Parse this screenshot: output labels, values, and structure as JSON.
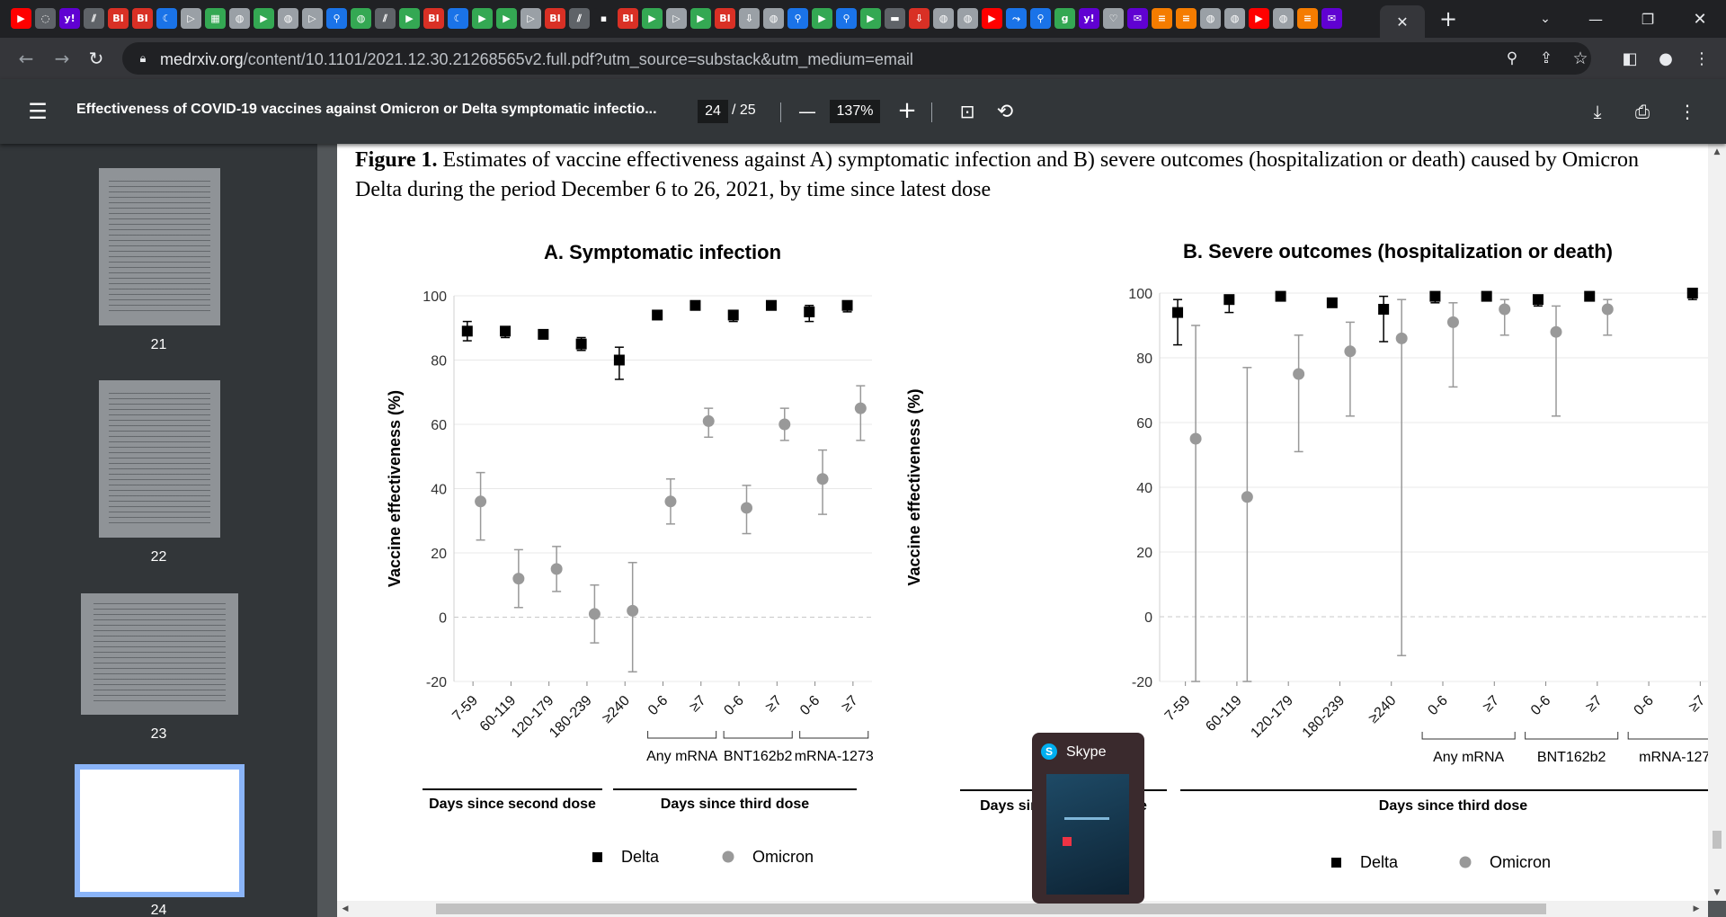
{
  "browser": {
    "url_host": "medrxiv.org",
    "url_path": "/content/10.1101/2021.12.30.21268565v2.full.pdf?utm_source=substack&utm_medium=email",
    "tab_icons": [
      {
        "name": "youtube-icon",
        "glyph": "▶",
        "color": "#ff0000"
      },
      {
        "name": "tab-icon-generic",
        "glyph": "◌",
        "color": "#5f6368"
      },
      {
        "name": "yahoo-icon",
        "glyph": "y!",
        "color": "#6001d2"
      },
      {
        "name": "tab-icon-generic",
        "glyph": "⫽",
        "color": "#5f6368"
      },
      {
        "name": "business-insider-icon",
        "glyph": "BI",
        "color": "#d93025"
      },
      {
        "name": "business-insider-icon",
        "glyph": "BI",
        "color": "#d93025"
      },
      {
        "name": "tab-icon-generic",
        "glyph": "☾",
        "color": "#1a73e8"
      },
      {
        "name": "tab-icon-generic",
        "glyph": "▷",
        "color": "#9aa0a6"
      },
      {
        "name": "tab-icon-generic",
        "glyph": "▦",
        "color": "#34a853"
      },
      {
        "name": "globe-icon",
        "glyph": "◍",
        "color": "#9aa0a6"
      },
      {
        "name": "play-icon",
        "glyph": "▶",
        "color": "#34a853"
      },
      {
        "name": "globe-icon",
        "glyph": "◍",
        "color": "#9aa0a6"
      },
      {
        "name": "tab-icon-generic",
        "glyph": "▷",
        "color": "#9aa0a6"
      },
      {
        "name": "search-icon",
        "glyph": "⚲",
        "color": "#1a73e8"
      },
      {
        "name": "globe-icon",
        "glyph": "◍",
        "color": "#34a853"
      },
      {
        "name": "tab-icon-generic",
        "glyph": "⫽",
        "color": "#5f6368"
      },
      {
        "name": "play-icon",
        "glyph": "▶",
        "color": "#34a853"
      },
      {
        "name": "business-insider-icon",
        "glyph": "BI",
        "color": "#d93025"
      },
      {
        "name": "tab-icon-generic",
        "glyph": "☾",
        "color": "#1a73e8"
      },
      {
        "name": "play-icon",
        "glyph": "▶",
        "color": "#34a853"
      },
      {
        "name": "play-icon",
        "glyph": "▶",
        "color": "#34a853"
      },
      {
        "name": "tab-icon-generic",
        "glyph": "▷",
        "color": "#9aa0a6"
      },
      {
        "name": "business-insider-icon",
        "glyph": "BI",
        "color": "#d93025"
      },
      {
        "name": "tab-icon-generic",
        "glyph": "⫽",
        "color": "#5f6368"
      },
      {
        "name": "tab-icon-generic",
        "glyph": "▪",
        "color": "#202124"
      },
      {
        "name": "business-insider-icon",
        "glyph": "BI",
        "color": "#d93025"
      },
      {
        "name": "play-icon",
        "glyph": "▶",
        "color": "#34a853"
      },
      {
        "name": "tab-icon-generic",
        "glyph": "▷",
        "color": "#9aa0a6"
      },
      {
        "name": "play-icon",
        "glyph": "▶",
        "color": "#34a853"
      },
      {
        "name": "business-insider-icon",
        "glyph": "BI",
        "color": "#d93025"
      },
      {
        "name": "tab-icon-generic",
        "glyph": "⇩",
        "color": "#9aa0a6"
      },
      {
        "name": "globe-icon",
        "glyph": "◍",
        "color": "#9aa0a6"
      },
      {
        "name": "search-icon",
        "glyph": "⚲",
        "color": "#1a73e8"
      },
      {
        "name": "play-icon",
        "glyph": "▶",
        "color": "#34a853"
      },
      {
        "name": "search-icon",
        "glyph": "⚲",
        "color": "#1a73e8"
      },
      {
        "name": "play-icon",
        "glyph": "▶",
        "color": "#34a853"
      },
      {
        "name": "tab-icon-generic",
        "glyph": "▬",
        "color": "#5f6368"
      },
      {
        "name": "tab-icon-generic",
        "glyph": "⇩",
        "color": "#d93025"
      },
      {
        "name": "globe-icon",
        "glyph": "◍",
        "color": "#9aa0a6"
      },
      {
        "name": "globe-icon",
        "glyph": "◍",
        "color": "#9aa0a6"
      },
      {
        "name": "youtube-icon",
        "glyph": "▶",
        "color": "#ff0000"
      },
      {
        "name": "tab-icon-generic",
        "glyph": "⤳",
        "color": "#1a73e8"
      },
      {
        "name": "search-icon",
        "glyph": "⚲",
        "color": "#1a73e8"
      },
      {
        "name": "tab-icon-generic",
        "glyph": "g",
        "color": "#34a853"
      },
      {
        "name": "yahoo-icon",
        "glyph": "y!",
        "color": "#6001d2"
      },
      {
        "name": "tab-icon-generic",
        "glyph": "♡",
        "color": "#9aa0a6"
      },
      {
        "name": "tab-icon-generic",
        "glyph": "✉",
        "color": "#6001d2"
      },
      {
        "name": "tab-icon-generic",
        "glyph": "≡",
        "color": "#f57c00"
      },
      {
        "name": "tab-icon-generic",
        "glyph": "≡",
        "color": "#f57c00"
      },
      {
        "name": "globe-icon",
        "glyph": "◍",
        "color": "#9aa0a6"
      },
      {
        "name": "globe-icon",
        "glyph": "◍",
        "color": "#9aa0a6"
      },
      {
        "name": "youtube-icon",
        "glyph": "▶",
        "color": "#ff0000"
      },
      {
        "name": "globe-icon",
        "glyph": "◍",
        "color": "#9aa0a6"
      },
      {
        "name": "tab-icon-generic",
        "glyph": "≡",
        "color": "#f57c00"
      },
      {
        "name": "tab-icon-generic",
        "glyph": "✉",
        "color": "#6001d2"
      }
    ]
  },
  "pdf_toolbar": {
    "title": "Effectiveness of COVID-19 vaccines against Omicron or Delta symptomatic infectio...",
    "current_page": "24",
    "total_pages": "/ 25",
    "zoom": "137%"
  },
  "sidebar": {
    "thumbnails": [
      {
        "label": "21"
      },
      {
        "label": "22"
      },
      {
        "label": "23"
      },
      {
        "label": "24",
        "selected": true
      }
    ]
  },
  "document": {
    "caption_bold": "Figure 1.",
    "caption_text": " Estimates of vaccine effectiveness against A) symptomatic infection and B) severe outcomes (hospitalization or death) caused by Omicron or Delta during the period December 6 to 26, 2021, by time since latest dose",
    "caption_text_visible": " Estimates of vaccine effectiveness against A) symptomatic infection and B) severe outcomes (hospitalization or death) caused by Omicron",
    "caption_line2": "Delta during the period December 6 to 26, 2021, by time since latest dose"
  },
  "chart_data": [
    {
      "type": "scatter",
      "title": "A. Symptomatic infection",
      "ylabel": "Vaccine effectiveness (%)",
      "ylim": [
        -20,
        100
      ],
      "yticks": [
        100,
        80,
        60,
        40,
        20,
        0,
        -20
      ],
      "categories": [
        "7-59",
        "60-119",
        "120-179",
        "180-239",
        "≥240",
        "0-6",
        "≥7",
        "0-6",
        "≥7",
        "0-6",
        "≥7"
      ],
      "groups": [
        {
          "label": "Days since second dose",
          "from": 0,
          "to": 4
        },
        {
          "label": "Days since third dose",
          "from": 5,
          "to": 10
        }
      ],
      "subgroups": [
        {
          "label": "Any mRNA",
          "from": 5,
          "to": 6
        },
        {
          "label": "BNT162b2",
          "from": 7,
          "to": 8
        },
        {
          "label": "mRNA-1273",
          "from": 9,
          "to": 10
        }
      ],
      "series": [
        {
          "name": "Delta",
          "marker": "square",
          "color": "#000000",
          "values": [
            89,
            89,
            88,
            85,
            80,
            94,
            97,
            94,
            97,
            95,
            97
          ],
          "lower": [
            86,
            87,
            87,
            83,
            74,
            93,
            96,
            92,
            96,
            92,
            95
          ],
          "upper": [
            92,
            90,
            89,
            87,
            84,
            95,
            98,
            95,
            98,
            97,
            98
          ]
        },
        {
          "name": "Omicron",
          "marker": "circle",
          "color": "#999999",
          "values": [
            36,
            12,
            15,
            1,
            2,
            36,
            61,
            34,
            60,
            43,
            65
          ],
          "lower": [
            24,
            3,
            8,
            -8,
            -17,
            29,
            56,
            26,
            55,
            32,
            55
          ],
          "upper": [
            45,
            21,
            22,
            10,
            17,
            43,
            65,
            41,
            65,
            52,
            72
          ]
        }
      ]
    },
    {
      "type": "scatter",
      "title": "B. Severe outcomes (hospitalization or death)",
      "ylabel": "Vaccine effectiveness (%)",
      "ylim": [
        -20,
        100
      ],
      "yticks": [
        100,
        80,
        60,
        40,
        20,
        0,
        -20
      ],
      "categories": [
        "7-59",
        "60-119",
        "120-179",
        "180-239",
        "≥240",
        "0-6",
        "≥7",
        "0-6",
        "≥7",
        "0-6",
        "≥7"
      ],
      "groups": [
        {
          "label": "Days since second dose",
          "from": 0,
          "to": 4
        },
        {
          "label": "Days since third dose",
          "from": 5,
          "to": 10
        }
      ],
      "subgroups": [
        {
          "label": "Any mRNA",
          "from": 5,
          "to": 6
        },
        {
          "label": "BNT162b2",
          "from": 7,
          "to": 8
        },
        {
          "label": "mRNA-127",
          "from": 9,
          "to": 10
        }
      ],
      "series": [
        {
          "name": "Delta",
          "marker": "square",
          "color": "#000000",
          "values": [
            94,
            98,
            99,
            97,
            95,
            99,
            99,
            98,
            99,
            null,
            100
          ],
          "lower": [
            84,
            94,
            null,
            null,
            85,
            97,
            null,
            96,
            null,
            null,
            98
          ],
          "upper": [
            98,
            99,
            null,
            null,
            99,
            100,
            null,
            99,
            null,
            null,
            100
          ]
        },
        {
          "name": "Omicron",
          "marker": "circle",
          "color": "#999999",
          "values": [
            55,
            37,
            75,
            82,
            86,
            91,
            95,
            88,
            95,
            null,
            null
          ],
          "lower": [
            -20,
            -20,
            51,
            62,
            -12,
            71,
            87,
            62,
            87,
            null,
            null
          ],
          "upper": [
            90,
            77,
            87,
            91,
            98,
            97,
            98,
            96,
            98,
            null,
            null
          ]
        }
      ]
    }
  ],
  "legend": {
    "delta": "Delta",
    "omicron": "Omicron"
  },
  "skype": {
    "title": "Skype"
  }
}
